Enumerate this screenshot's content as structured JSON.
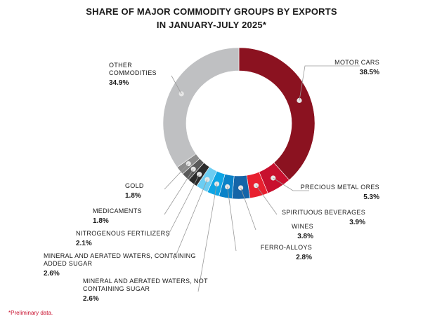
{
  "chart_data": {
    "type": "pie",
    "title_lines": [
      "SHARE OF MAJOR COMMODITY GROUPS BY EXPORTS",
      "IN JANUARY-JULY 2025*"
    ],
    "footnote": "*Preliminary data.",
    "slices": [
      {
        "label_lines": [
          "MOTOR CARS"
        ],
        "value": 38.5,
        "value_label": "38.5%",
        "color": "#8b1220"
      },
      {
        "label_lines": [
          "PRECIOUS METAL ORES"
        ],
        "value": 5.3,
        "value_label": "5.3%",
        "color": "#c8102e"
      },
      {
        "label_lines": [
          "SPIRITUOUS BEVERAGES"
        ],
        "value": 3.9,
        "value_label": "3.9%",
        "color": "#e8202f"
      },
      {
        "label_lines": [
          "WINES"
        ],
        "value": 3.8,
        "value_label": "3.8%",
        "color": "#1565a8"
      },
      {
        "label_lines": [
          "FERRO-ALLOYS"
        ],
        "value": 2.8,
        "value_label": "2.8%",
        "color": "#0a82c8"
      },
      {
        "label_lines": [
          "MINERAL AND AERATED WATERS, NOT",
          "CONTAINING SUGAR"
        ],
        "value": 2.6,
        "value_label": "2.6%",
        "color": "#0ea5e4"
      },
      {
        "label_lines": [
          "MINERAL AND AERATED WATERS, CONTAINING",
          "ADDED SUGAR"
        ],
        "value": 2.6,
        "value_label": "2.6%",
        "color": "#6ccdf2"
      },
      {
        "label_lines": [
          "NITROGENOUS FERTILIZERS"
        ],
        "value": 2.1,
        "value_label": "2.1%",
        "color": "#2b2b2b"
      },
      {
        "label_lines": [
          "MEDICAMENTS"
        ],
        "value": 1.8,
        "value_label": "1.8%",
        "color": "#5a5a5a"
      },
      {
        "label_lines": [
          "GOLD"
        ],
        "value": 1.8,
        "value_label": "1.8%",
        "color": "#8c8c8c"
      },
      {
        "label_lines": [
          "OTHER",
          "COMMODITIES"
        ],
        "value": 34.9,
        "value_label": "34.9%",
        "color": "#bfc0c2"
      }
    ]
  }
}
